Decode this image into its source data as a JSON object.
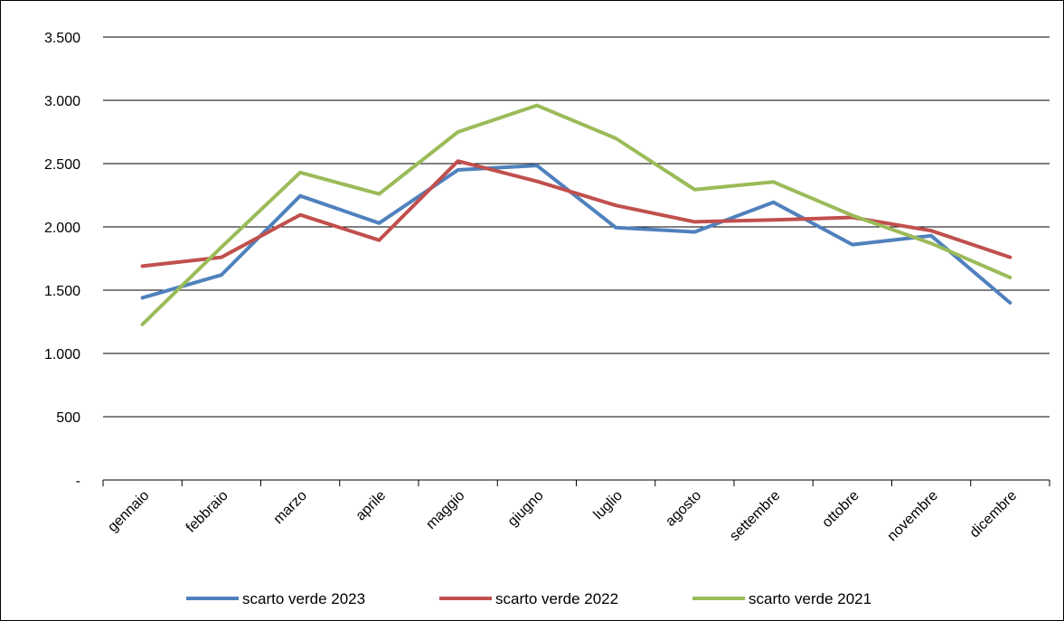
{
  "chart_data": {
    "type": "line",
    "categories": [
      "gennaio",
      "febbraio",
      "marzo",
      "aprile",
      "maggio",
      "giugno",
      "luglio",
      "agosto",
      "settembre",
      "ottobre",
      "novembre",
      "dicembre"
    ],
    "series": [
      {
        "name": "scarto verde 2023",
        "color": "#4F81BD",
        "values": [
          1440,
          1620,
          2245,
          2030,
          2450,
          2485,
          1995,
          1960,
          2195,
          1860,
          1930,
          1400
        ]
      },
      {
        "name": "scarto verde 2022",
        "color": "#C0504D",
        "values": [
          1690,
          1760,
          2095,
          1895,
          2520,
          2360,
          2170,
          2040,
          2055,
          2075,
          1970,
          1760
        ]
      },
      {
        "name": "scarto verde 2021",
        "color": "#9BBB59",
        "values": [
          1230,
          1840,
          2430,
          2260,
          2750,
          2960,
          2700,
          2295,
          2355,
          2090,
          1870,
          1600
        ]
      }
    ],
    "y_ticks": [
      {
        "value": 0,
        "label": "-"
      },
      {
        "value": 500,
        "label": "500"
      },
      {
        "value": 1000,
        "label": "1.000"
      },
      {
        "value": 1500,
        "label": "1.500"
      },
      {
        "value": 2000,
        "label": "2.000"
      },
      {
        "value": 2500,
        "label": "2.500"
      },
      {
        "value": 3000,
        "label": "3.000"
      },
      {
        "value": 3500,
        "label": "3.500"
      }
    ],
    "ylim": [
      0,
      3500
    ],
    "grid": true,
    "legend_position": "bottom",
    "title": "",
    "xlabel": "",
    "ylabel": ""
  }
}
